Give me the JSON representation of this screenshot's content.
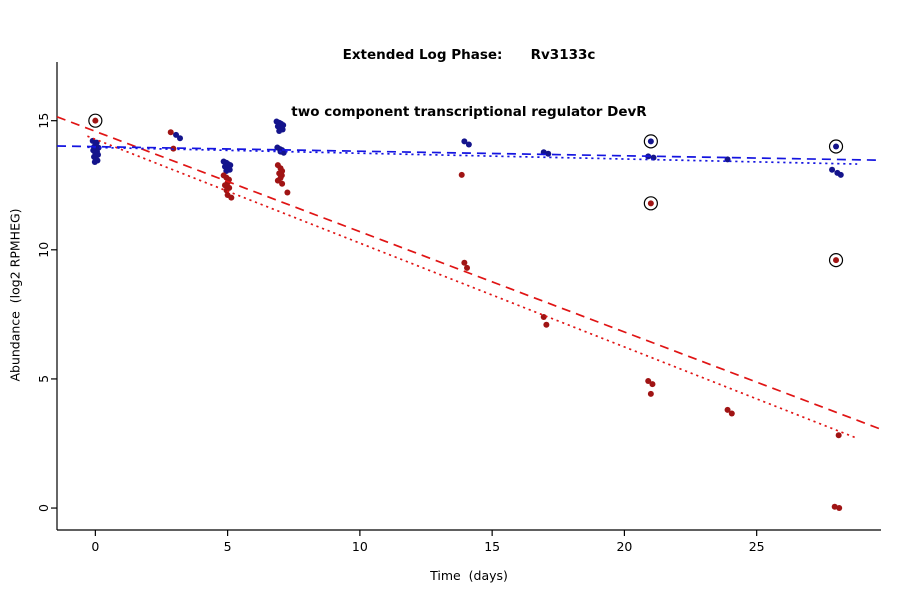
{
  "title": {
    "line1": "Extended Log Phase:      Rv3133c",
    "line2": "two component transcriptional regulator DevR"
  },
  "axes": {
    "xlabel": "Time  (days)",
    "ylabel": "Abundance  (log2 RPMHEG)"
  },
  "chart_data": {
    "type": "scatter",
    "title": "Extended Log Phase: Rv3133c — two component transcriptional regulator DevR",
    "xlabel": "Time (days)",
    "ylabel": "Abundance (log2 RPMHEG)",
    "xlim": [
      -1.45,
      29.7
    ],
    "ylim": [
      -0.85,
      17.35
    ],
    "x_ticks": [
      0,
      5,
      10,
      15,
      20,
      25
    ],
    "y_ticks": [
      0,
      5,
      10,
      15
    ],
    "grid": false,
    "legend": "none",
    "background": "#ffffff",
    "series": [
      {
        "name": "blue-condition-points",
        "color": "#14148c",
        "points": [
          [
            -0.1,
            14.22
          ],
          [
            0.05,
            14.15
          ],
          [
            0.0,
            14.05
          ],
          [
            -0.05,
            13.98
          ],
          [
            0.12,
            13.95
          ],
          [
            0.0,
            13.9
          ],
          [
            -0.08,
            13.85
          ],
          [
            0.06,
            13.8
          ],
          [
            0.0,
            13.74
          ],
          [
            0.1,
            13.68
          ],
          [
            -0.05,
            13.6
          ],
          [
            0.02,
            13.52
          ],
          [
            0.08,
            13.46
          ],
          [
            -0.02,
            13.4
          ],
          [
            3.05,
            14.45
          ],
          [
            3.2,
            14.32
          ],
          [
            4.85,
            13.42
          ],
          [
            4.95,
            13.37
          ],
          [
            5.02,
            13.32
          ],
          [
            5.1,
            13.28
          ],
          [
            4.9,
            13.22
          ],
          [
            5.0,
            13.16
          ],
          [
            5.08,
            13.1
          ],
          [
            4.95,
            13.05
          ],
          [
            6.85,
            14.97
          ],
          [
            6.95,
            14.92
          ],
          [
            7.02,
            14.88
          ],
          [
            7.1,
            14.83
          ],
          [
            6.9,
            14.78
          ],
          [
            7.0,
            14.72
          ],
          [
            7.08,
            14.66
          ],
          [
            6.95,
            14.6
          ],
          [
            6.88,
            13.96
          ],
          [
            6.98,
            13.9
          ],
          [
            7.06,
            13.86
          ],
          [
            7.0,
            13.8
          ],
          [
            7.12,
            13.76
          ],
          [
            13.95,
            14.2
          ],
          [
            14.12,
            14.08
          ],
          [
            16.95,
            13.78
          ],
          [
            17.12,
            13.72
          ],
          [
            21.0,
            14.2
          ],
          [
            20.9,
            13.62
          ],
          [
            21.1,
            13.57
          ],
          [
            23.9,
            13.5
          ],
          [
            28.0,
            14.0
          ],
          [
            27.85,
            13.1
          ],
          [
            28.05,
            12.98
          ],
          [
            28.18,
            12.9
          ]
        ]
      },
      {
        "name": "red-condition-points",
        "color": "#a01414",
        "points": [
          [
            0.0,
            15.0
          ],
          [
            2.85,
            14.55
          ],
          [
            2.95,
            13.92
          ],
          [
            4.85,
            12.88
          ],
          [
            4.95,
            12.8
          ],
          [
            5.05,
            12.72
          ],
          [
            5.0,
            12.6
          ],
          [
            4.9,
            12.5
          ],
          [
            5.06,
            12.4
          ],
          [
            4.96,
            12.3
          ],
          [
            5.0,
            12.12
          ],
          [
            5.14,
            12.02
          ],
          [
            6.9,
            13.28
          ],
          [
            7.0,
            13.16
          ],
          [
            7.06,
            13.05
          ],
          [
            6.95,
            12.96
          ],
          [
            7.05,
            12.88
          ],
          [
            7.0,
            12.78
          ],
          [
            6.9,
            12.68
          ],
          [
            7.06,
            12.56
          ],
          [
            7.26,
            12.22
          ],
          [
            13.85,
            12.9
          ],
          [
            13.95,
            9.5
          ],
          [
            14.05,
            9.3
          ],
          [
            16.95,
            7.4
          ],
          [
            17.05,
            7.1
          ],
          [
            21.0,
            11.8
          ],
          [
            20.9,
            4.92
          ],
          [
            21.06,
            4.8
          ],
          [
            21.0,
            4.42
          ],
          [
            23.9,
            3.8
          ],
          [
            24.06,
            3.66
          ],
          [
            28.0,
            9.6
          ],
          [
            28.1,
            2.82
          ],
          [
            27.95,
            0.05
          ],
          [
            28.12,
            0.0
          ]
        ]
      }
    ],
    "circled_points": [
      [
        0.0,
        15.0
      ],
      [
        21.0,
        14.2
      ],
      [
        21.0,
        11.8
      ],
      [
        28.0,
        14.0
      ],
      [
        28.0,
        9.6
      ]
    ],
    "trend_lines": [
      {
        "series": "red",
        "style": "dashed",
        "color": "#e01414",
        "x1": -1.45,
        "y1": 15.15,
        "x2": 29.7,
        "y2": 3.05
      },
      {
        "series": "red",
        "style": "dotted",
        "color": "#e01414",
        "x1": -0.3,
        "y1": 14.4,
        "x2": 28.8,
        "y2": 2.7
      },
      {
        "series": "blue",
        "style": "dashed",
        "color": "#1414e0",
        "x1": -1.45,
        "y1": 14.02,
        "x2": 29.7,
        "y2": 13.47
      },
      {
        "series": "blue",
        "style": "dotted",
        "color": "#1414e0",
        "x1": -0.3,
        "y1": 13.97,
        "x2": 28.8,
        "y2": 13.32
      }
    ]
  }
}
